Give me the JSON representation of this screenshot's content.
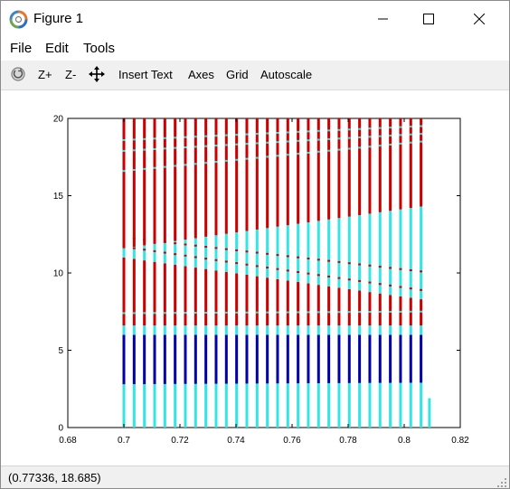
{
  "window": {
    "title": "Figure 1",
    "controls": {
      "minimize": "minimize-icon",
      "maximize": "maximize-icon",
      "close": "close-icon"
    }
  },
  "menubar": {
    "items": [
      "File",
      "Edit",
      "Tools"
    ]
  },
  "toolbar": {
    "rotate_icon": "rotate-icon",
    "zoom_in_label": "Z+",
    "zoom_out_label": "Z-",
    "pan_icon": "pan-arrows-icon",
    "insert_text_label": "Insert Text",
    "axes_label": "Axes",
    "grid_label": "Grid",
    "autoscale_label": "Autoscale"
  },
  "status": {
    "coordinates": "(0.77336, 18.685)"
  },
  "chart_data": {
    "type": "scatter",
    "title": "",
    "xlabel": "",
    "ylabel": "",
    "xlim": [
      0.68,
      0.82
    ],
    "ylim": [
      0,
      20
    ],
    "x_ticks": [
      "0.68",
      "0.7",
      "0.72",
      "0.74",
      "0.76",
      "0.78",
      "0.8",
      "0.82"
    ],
    "y_ticks": [
      "0",
      "5",
      "10",
      "15",
      "20"
    ],
    "grid": false,
    "legend": "none",
    "colors": {
      "red": "#cc0000",
      "blue": "#0000aa",
      "cyan": "#33e6e6"
    },
    "column_x_start": 0.7,
    "column_x_end": 0.806,
    "column_count": 30,
    "extra_column": {
      "x": 0.809,
      "y_range": [
        0,
        1.9
      ],
      "color": "cyan"
    },
    "bands": [
      {
        "color": "cyan",
        "y_start": [
          0,
          0
        ],
        "y_end": [
          2.8,
          2.9
        ]
      },
      {
        "color": "blue",
        "y_start": [
          2.8,
          2.9
        ],
        "y_end": [
          6.0,
          6.0
        ]
      },
      {
        "color": "cyan",
        "y_start": [
          6.0,
          6.0
        ],
        "y_end": [
          6.6,
          6.6
        ]
      },
      {
        "color": "red",
        "y_start": [
          6.6,
          6.6
        ],
        "y_end": [
          11.0,
          8.3
        ]
      },
      {
        "color": "cyan",
        "y_start": [
          11.0,
          8.3
        ],
        "y_end": [
          11.6,
          14.3
        ]
      },
      {
        "color": "red",
        "y_start": [
          11.6,
          14.3
        ],
        "y_end": [
          20,
          20
        ]
      }
    ],
    "streaks": [
      {
        "color": "cyan",
        "y": [
          7.4,
          7.5
        ]
      },
      {
        "color": "cyan",
        "y": [
          16.6,
          18.5
        ]
      },
      {
        "color": "cyan",
        "y": [
          17.9,
          19.0
        ]
      },
      {
        "color": "cyan",
        "y": [
          18.6,
          19.5
        ]
      },
      {
        "color": "red",
        "y": [
          12.3,
          10.1
        ]
      },
      {
        "color": "red",
        "y": [
          11.7,
          8.9
        ]
      }
    ]
  }
}
